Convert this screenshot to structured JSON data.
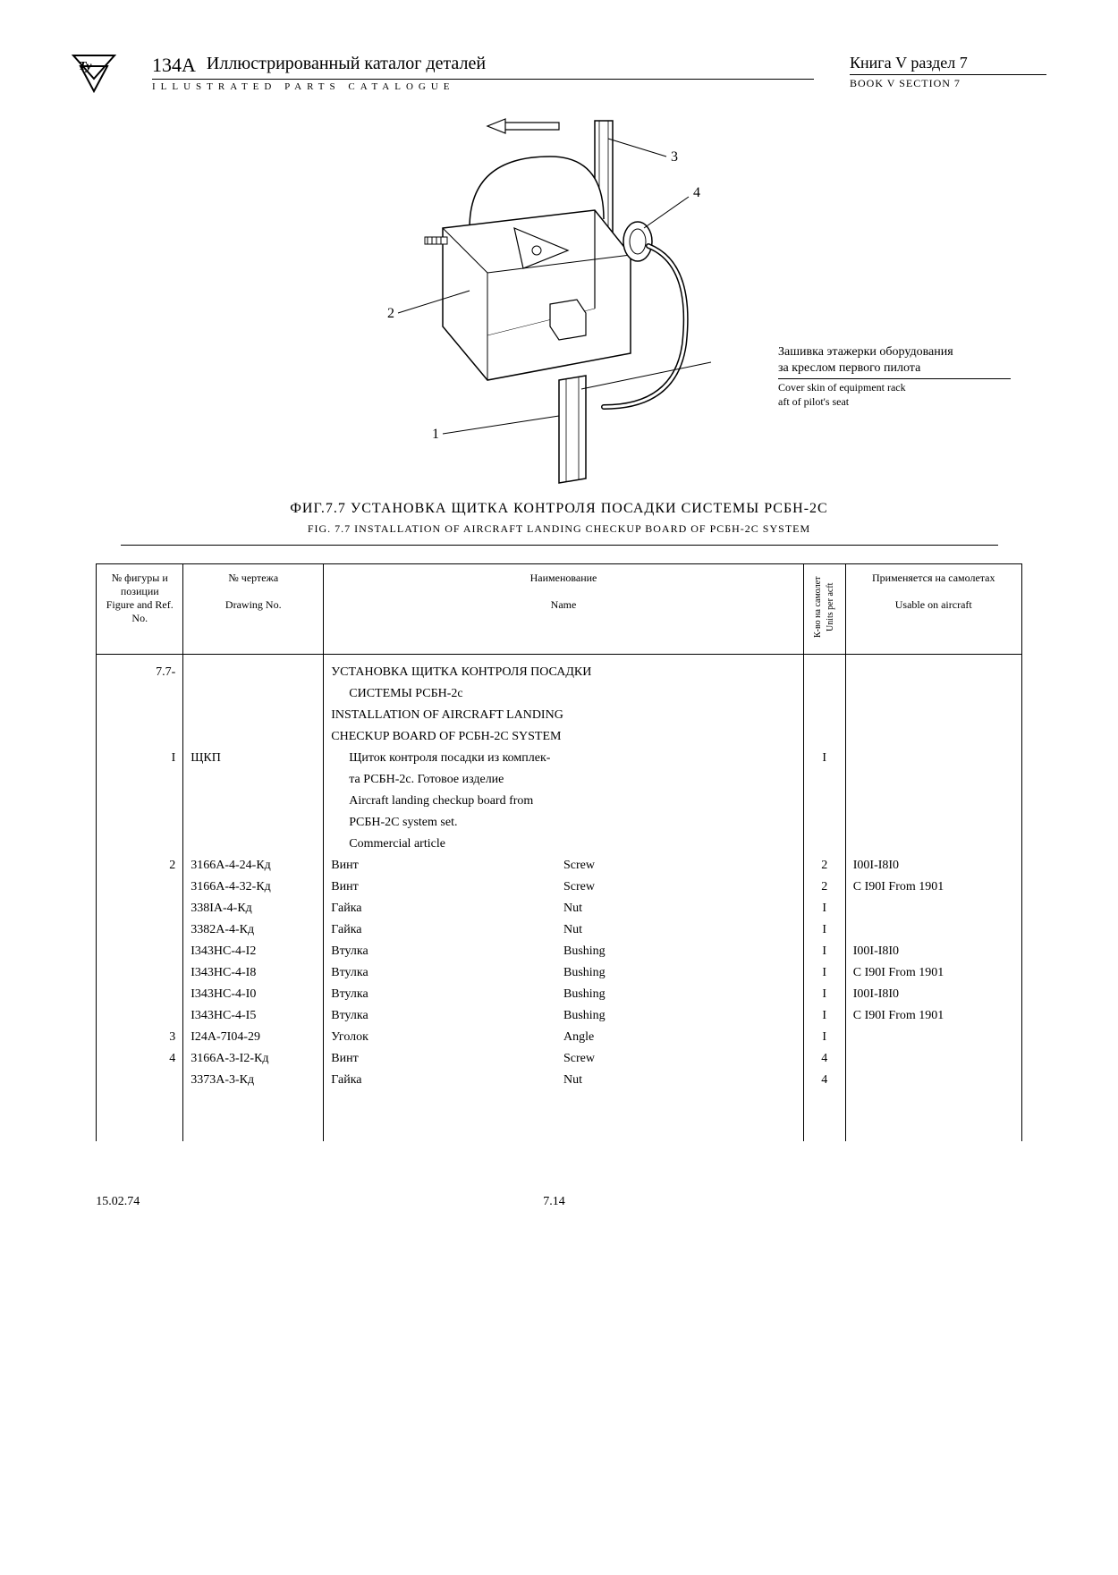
{
  "header": {
    "model": "134А",
    "title_ru": "Иллюстрированный каталог деталей",
    "title_en": "ILLUSTRATED PARTS CATALOGUE",
    "book_ru": "Книга V раздел 7",
    "book_en": "BOOK V SECTION 7"
  },
  "figure": {
    "callouts": [
      "1",
      "2",
      "3",
      "4"
    ],
    "annotation_ru1": "Зашивка этажерки оборудования",
    "annotation_ru2": "за креслом первого пилота",
    "annotation_en1": "Cover skin of equipment rack",
    "annotation_en2": "aft of pilot's seat"
  },
  "caption": {
    "ru": "ФИГ.7.7 УСТАНОВКА ЩИТКА КОНТРОЛЯ ПОСАДКИ СИСТЕМЫ РСБН-2С",
    "en": "FIG. 7.7 INSTALLATION OF AIRCRAFT LANDING CHECKUP BOARD OF PCБH-2C SYSTEM"
  },
  "table": {
    "headers": {
      "fig_ru": "№ фигуры и позиции",
      "fig_en": "Figure and Ref. No.",
      "draw_ru": "№ чертежа",
      "draw_en": "Drawing No.",
      "name_ru": "Наименование",
      "name_en": "Name",
      "units_ru": "К-во на самолет",
      "units_en": "Units per acft",
      "usable_ru": "Применяется на самолетах",
      "usable_en": "Usable on aircraft"
    },
    "rows": [
      {
        "fig": "7.7-",
        "draw": "",
        "name_ru": "УСТАНОВКА ЩИТКА КОНТРОЛЯ ПОСАДКИ",
        "name_en": "",
        "units": "",
        "usable": ""
      },
      {
        "fig": "",
        "draw": "",
        "name_ru": "СИСТЕМЫ РСБН-2с",
        "name_en": "",
        "units": "",
        "usable": "",
        "indent": true
      },
      {
        "fig": "",
        "draw": "",
        "name_ru": "INSTALLATION OF AIRCRAFT LANDING",
        "name_en": "",
        "units": "",
        "usable": ""
      },
      {
        "fig": "",
        "draw": "",
        "name_ru": "CHECKUP BOARD OF PCБH-2C SYSTEM",
        "name_en": "",
        "units": "",
        "usable": ""
      },
      {
        "fig": "I",
        "draw": "ЩКП",
        "name_ru": "Щиток контроля посадки из комплек-",
        "name_en": "",
        "units": "I",
        "usable": "",
        "indent": true
      },
      {
        "fig": "",
        "draw": "",
        "name_ru": "та РСБН-2с. Готовое изделие",
        "name_en": "",
        "units": "",
        "usable": "",
        "indent": true
      },
      {
        "fig": "",
        "draw": "",
        "name_ru": "Aircraft landing checkup board from",
        "name_en": "",
        "units": "",
        "usable": "",
        "indent": true
      },
      {
        "fig": "",
        "draw": "",
        "name_ru": "PCБH-2C system set.",
        "name_en": "",
        "units": "",
        "usable": "",
        "indent": true
      },
      {
        "fig": "",
        "draw": "",
        "name_ru": "Commercial article",
        "name_en": "",
        "units": "",
        "usable": "",
        "indent": true
      },
      {
        "fig": "2",
        "draw": "3166А-4-24-Кд",
        "name_ru": "Винт",
        "name_en": "Screw",
        "units": "2",
        "usable": "I00I-I8I0",
        "split": true
      },
      {
        "fig": "",
        "draw": "3166А-4-32-Кд",
        "name_ru": "Винт",
        "name_en": "Screw",
        "units": "2",
        "usable": "С I90I From 1901",
        "split": true
      },
      {
        "fig": "",
        "draw": "338IА-4-Кд",
        "name_ru": "Гайка",
        "name_en": "Nut",
        "units": "I",
        "usable": "",
        "split": true
      },
      {
        "fig": "",
        "draw": "3382А-4-Кд",
        "name_ru": "Гайка",
        "name_en": "Nut",
        "units": "I",
        "usable": "",
        "split": true
      },
      {
        "fig": "",
        "draw": "I343HC-4-I2",
        "name_ru": "Втулка",
        "name_en": "Bushing",
        "units": "I",
        "usable": "I00I-I8I0",
        "split": true
      },
      {
        "fig": "",
        "draw": "I343HC-4-I8",
        "name_ru": "Втулка",
        "name_en": "Bushing",
        "units": "I",
        "usable": "С I90I From 1901",
        "split": true
      },
      {
        "fig": "",
        "draw": "I343HC-4-I0",
        "name_ru": "Втулка",
        "name_en": "Bushing",
        "units": "I",
        "usable": "I00I-I8I0",
        "split": true
      },
      {
        "fig": "",
        "draw": "I343HC-4-I5",
        "name_ru": "Втулка",
        "name_en": "Bushing",
        "units": "I",
        "usable": "С I90I From 1901",
        "split": true
      },
      {
        "fig": "3",
        "draw": "I24А-7I04-29",
        "name_ru": "Уголок",
        "name_en": "Angle",
        "units": "I",
        "usable": "",
        "split": true
      },
      {
        "fig": "4",
        "draw": "3166А-3-I2-Кд",
        "name_ru": "Винт",
        "name_en": "Screw",
        "units": "4",
        "usable": "",
        "split": true
      },
      {
        "fig": "",
        "draw": "3373А-3-Кд",
        "name_ru": "Гайка",
        "name_en": "Nut",
        "units": "4",
        "usable": "",
        "split": true
      }
    ]
  },
  "footer": {
    "date": "15.02.74",
    "page": "7.14"
  }
}
